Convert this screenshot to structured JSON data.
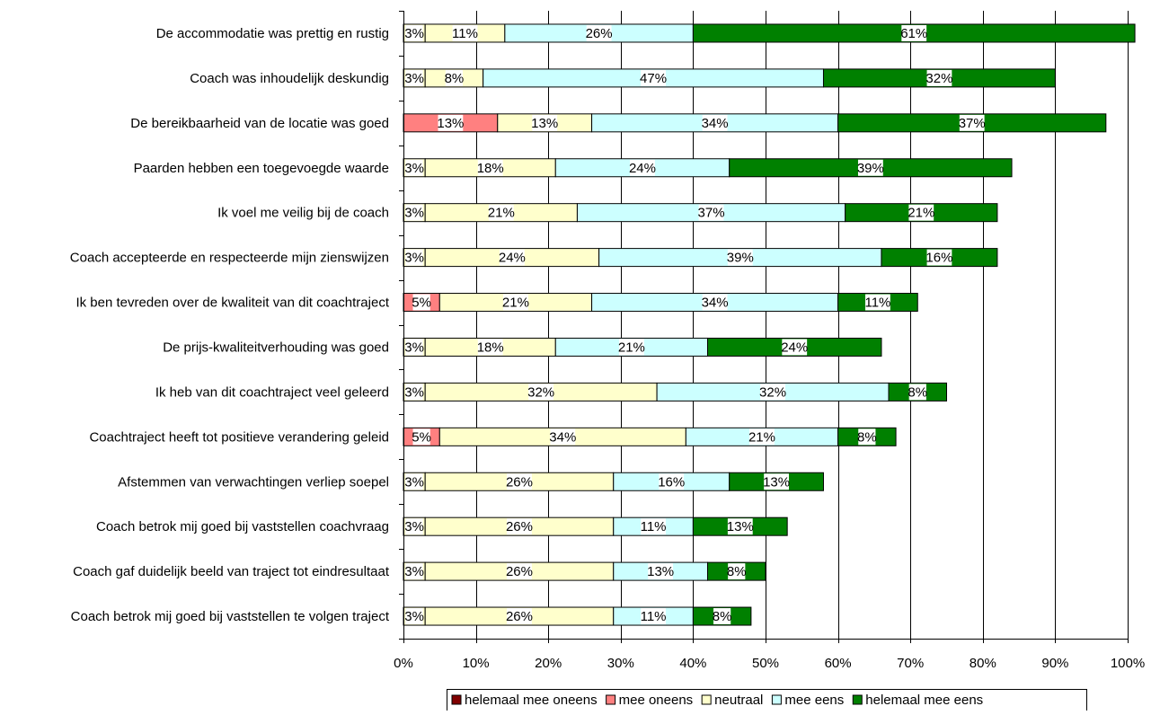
{
  "chart_data": {
    "type": "bar",
    "stacked": true,
    "orientation": "horizontal",
    "title": "",
    "xlabel": "",
    "ylabel": "",
    "xlim": [
      0,
      100
    ],
    "x_ticks": [
      "0%",
      "10%",
      "20%",
      "30%",
      "40%",
      "50%",
      "60%",
      "70%",
      "80%",
      "90%",
      "100%"
    ],
    "grid": true,
    "legend_position": "bottom",
    "categories": [
      "De accommodatie was prettig en rustig",
      "Coach was inhoudelijk deskundig",
      "De bereikbaarheid van de locatie was goed",
      "Paarden hebben een toegevoegde waarde",
      "Ik voel me veilig bij de coach",
      "Coach accepteerde en respecteerde mijn zienswijzen",
      "Ik ben tevreden over de kwaliteit van dit coachtraject",
      "De prijs-kwaliteitverhouding was goed",
      "Ik heb van dit coachtraject veel geleerd",
      "Coachtraject heeft tot positieve verandering geleid",
      "Afstemmen van verwachtingen verliep soepel",
      "Coach betrok mij goed bij vaststellen coachvraag",
      "Coach gaf duidelijk beeld van traject tot eindresultaat",
      "Coach betrok mij goed bij vaststellen te volgen traject"
    ],
    "series": [
      {
        "name": "helemaal mee oneens",
        "color": "#800000",
        "values": [
          0,
          0,
          0,
          0,
          0,
          0,
          0,
          0,
          0,
          0,
          0,
          0,
          0,
          0
        ],
        "labels": [
          "",
          "",
          "",
          "",
          "",
          "",
          "",
          "",
          "",
          "",
          "",
          "",
          "",
          ""
        ]
      },
      {
        "name": "mee oneens",
        "color": "#ff8080",
        "values": [
          0,
          0,
          13,
          0,
          0,
          0,
          5,
          0,
          0,
          5,
          0,
          0,
          0,
          0
        ],
        "labels": [
          "",
          "",
          "13%",
          "",
          "",
          "",
          "5%",
          "",
          "",
          "5%",
          "",
          "",
          "",
          ""
        ]
      },
      {
        "name": "neutraal",
        "color": "#ffffcc",
        "values": [
          3,
          3,
          0,
          3,
          3,
          3,
          0,
          3,
          3,
          0,
          3,
          3,
          3,
          3
        ],
        "labels": [
          "3%",
          "3%",
          "",
          "3%",
          "3%",
          "3%",
          "",
          "3%",
          "3%",
          "",
          "3%",
          "3%",
          "3%",
          "3%"
        ]
      },
      {
        "name": "neutraal",
        "color": "#ffffcc",
        "values": [
          11,
          8,
          13,
          18,
          21,
          24,
          21,
          18,
          32,
          34,
          26,
          26,
          26,
          26
        ],
        "labels": [
          "11%",
          "8%",
          "13%",
          "18%",
          "21%",
          "24%",
          "21%",
          "18%",
          "32%",
          "34%",
          "26%",
          "26%",
          "26%",
          "26%"
        ]
      },
      {
        "name": "mee eens",
        "color": "#ccffff",
        "values": [
          26,
          47,
          34,
          24,
          37,
          39,
          34,
          21,
          32,
          21,
          16,
          11,
          13,
          11
        ],
        "labels": [
          "26%",
          "47%",
          "34%",
          "24%",
          "37%",
          "39%",
          "34%",
          "21%",
          "32%",
          "21%",
          "16%",
          "11%",
          "13%",
          "11%"
        ]
      },
      {
        "name": "helemaal mee eens",
        "color": "#008000",
        "values": [
          61,
          32,
          37,
          39,
          21,
          16,
          11,
          24,
          8,
          8,
          13,
          13,
          8,
          8
        ],
        "labels": [
          "61%",
          "32%",
          "37%",
          "39%",
          "21%",
          "16%",
          "11%",
          "24%",
          "8%",
          "8%",
          "13%",
          "13%",
          "8%",
          "8%"
        ]
      }
    ],
    "legend": [
      {
        "label": "helemaal mee oneens",
        "color": "#800000"
      },
      {
        "label": "mee oneens",
        "color": "#ff8080"
      },
      {
        "label": "neutraal",
        "color": "#ffffcc"
      },
      {
        "label": "mee eens",
        "color": "#ccffff"
      },
      {
        "label": "helemaal mee eens",
        "color": "#008000"
      }
    ]
  }
}
